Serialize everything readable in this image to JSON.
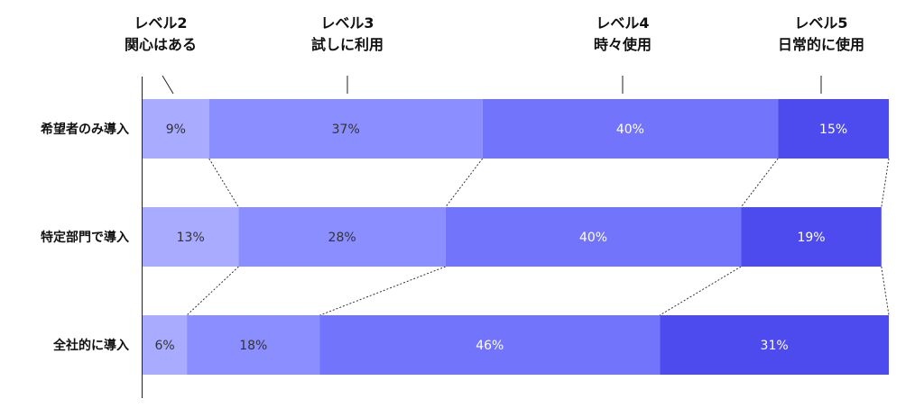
{
  "chart_data": {
    "type": "bar",
    "orientation": "horizontal",
    "stacked": true,
    "categories": [
      "希望者のみ導入",
      "特定部門で導入",
      "全社的に導入"
    ],
    "series": [
      {
        "name": "レベル2\n関心はある",
        "values": [
          9,
          13,
          6
        ],
        "labels": [
          "9%",
          "13%",
          "6%"
        ],
        "color": "#a8abff",
        "label_color": "#333333"
      },
      {
        "name": "レベル3\n試しに利用",
        "values": [
          37,
          28,
          18
        ],
        "labels": [
          "37%",
          "28%",
          "18%"
        ],
        "color": "#8b8eff",
        "label_color": "#333333"
      },
      {
        "name": "レベル4\n時々使用",
        "values": [
          40,
          40,
          46
        ],
        "labels": [
          "40%",
          "40%",
          "46%"
        ],
        "color": "#7274fb",
        "label_color": "#ffffff"
      },
      {
        "name": "レベル5\n日常的に使用",
        "values": [
          15,
          19,
          31
        ],
        "labels": [
          "15%",
          "19%",
          "31%"
        ],
        "color": "#4d4aee",
        "label_color": "#ffffff"
      }
    ],
    "unit": "%",
    "xlim": [
      0,
      101
    ],
    "legend_position": "top",
    "connector_lines": "dotted",
    "grid": false
  }
}
